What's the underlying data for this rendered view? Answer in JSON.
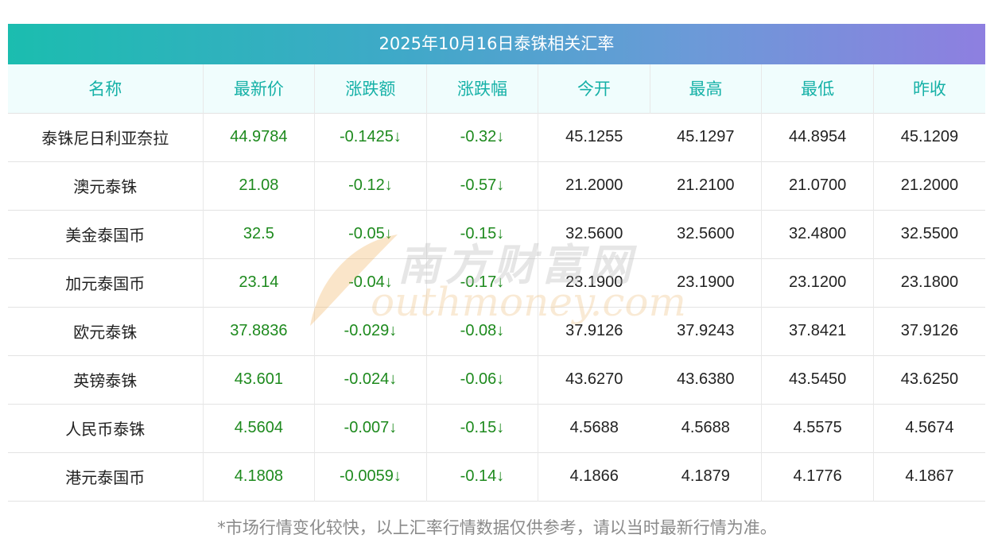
{
  "title": "2025年10月16日泰铢相关汇率",
  "headers": [
    "名称",
    "最新价",
    "涨跌额",
    "涨跌幅",
    "今开",
    "最高",
    "最低",
    "昨收"
  ],
  "rows": [
    {
      "name": "泰铢尼日利亚奈拉",
      "latest": "44.9784",
      "change": "-0.1425↓",
      "pct": "-0.32↓",
      "open": "45.1255",
      "high": "45.1297",
      "low": "44.8954",
      "prev": "45.1209"
    },
    {
      "name": "澳元泰铢",
      "latest": "21.08",
      "change": "-0.12↓",
      "pct": "-0.57↓",
      "open": "21.2000",
      "high": "21.2100",
      "low": "21.0700",
      "prev": "21.2000"
    },
    {
      "name": "美金泰国币",
      "latest": "32.5",
      "change": "-0.05↓",
      "pct": "-0.15↓",
      "open": "32.5600",
      "high": "32.5600",
      "low": "32.4800",
      "prev": "32.5500"
    },
    {
      "name": "加元泰国币",
      "latest": "23.14",
      "change": "-0.04↓",
      "pct": "-0.17↓",
      "open": "23.1900",
      "high": "23.1900",
      "low": "23.1200",
      "prev": "23.1800"
    },
    {
      "name": "欧元泰铢",
      "latest": "37.8836",
      "change": "-0.029↓",
      "pct": "-0.08↓",
      "open": "37.9126",
      "high": "37.9243",
      "low": "37.8421",
      "prev": "37.9126"
    },
    {
      "name": "英镑泰铢",
      "latest": "43.601",
      "change": "-0.024↓",
      "pct": "-0.06↓",
      "open": "43.6270",
      "high": "43.6380",
      "low": "43.5450",
      "prev": "43.6250"
    },
    {
      "name": "人民币泰铢",
      "latest": "4.5604",
      "change": "-0.007↓",
      "pct": "-0.15↓",
      "open": "4.5688",
      "high": "4.5688",
      "low": "4.5575",
      "prev": "4.5674"
    },
    {
      "name": "港元泰国币",
      "latest": "4.1808",
      "change": "-0.0059↓",
      "pct": "-0.14↓",
      "open": "4.1866",
      "high": "4.1879",
      "low": "4.1776",
      "prev": "4.1867"
    }
  ],
  "note": "*市场行情变化较快，以上汇率行情数据仅供参考，请以当时最新行情为准。",
  "watermark": {
    "cn": "南方财富网",
    "en": "outhmoney.com"
  },
  "colors": {
    "header_text": "#16b1a7",
    "down_green": "#1e8a1e",
    "gradient_start": "#1bbdaf",
    "gradient_end": "#8e7fe0"
  }
}
